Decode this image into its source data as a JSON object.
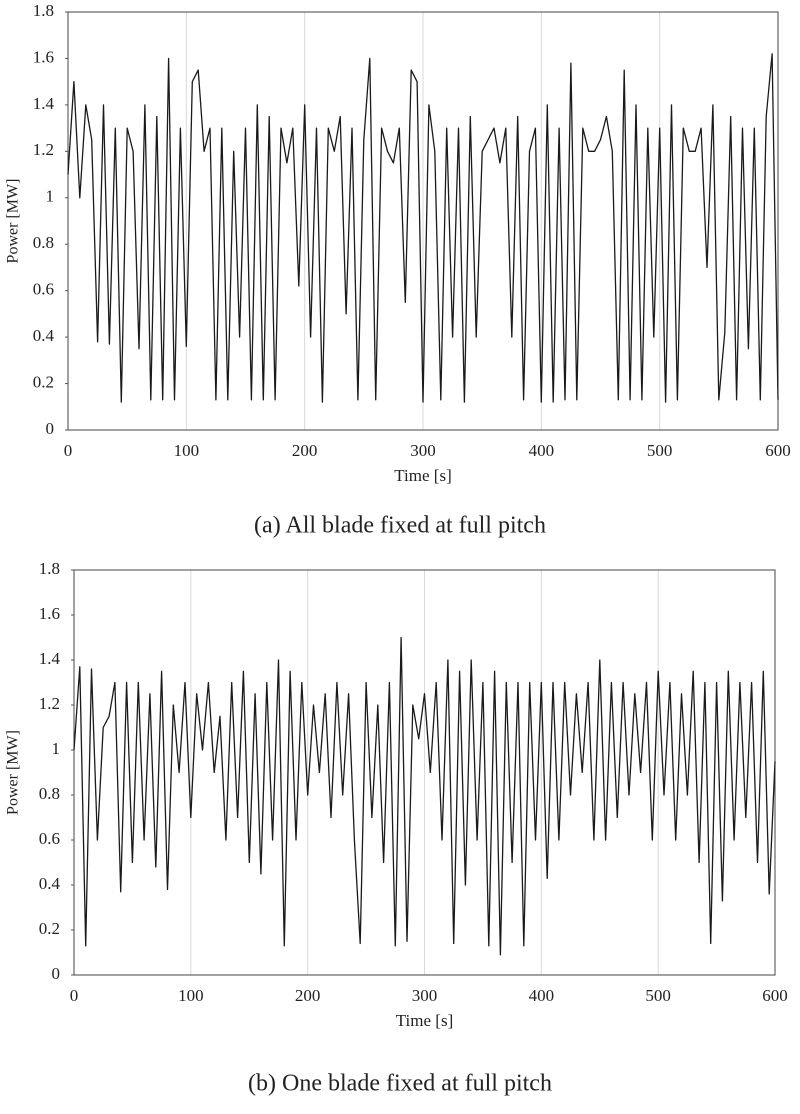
{
  "chart_data": [
    {
      "type": "line",
      "caption": "(a) All blade fixed at full pitch",
      "x_label": "Time [s]",
      "y_label": "Power [MW]",
      "color": "#1a1a1a",
      "grid": "x",
      "xlim": [
        0,
        600
      ],
      "xticks": [
        0,
        100,
        200,
        300,
        400,
        500,
        600
      ],
      "ylim": [
        0,
        1.8
      ],
      "yticks": [
        0,
        0.2,
        0.4,
        0.6,
        0.8,
        1,
        1.2,
        1.4,
        1.6,
        1.8
      ],
      "x": [
        0,
        5,
        10,
        15,
        20,
        25,
        30,
        35,
        40,
        45,
        50,
        55,
        60,
        65,
        70,
        75,
        80,
        85,
        90,
        95,
        100,
        105,
        110,
        115,
        120,
        125,
        130,
        135,
        140,
        145,
        150,
        155,
        160,
        165,
        170,
        175,
        180,
        185,
        190,
        195,
        200,
        205,
        210,
        215,
        220,
        225,
        230,
        235,
        240,
        245,
        250,
        255,
        260,
        265,
        270,
        275,
        280,
        285,
        290,
        295,
        300,
        305,
        310,
        315,
        320,
        325,
        330,
        335,
        340,
        345,
        350,
        355,
        360,
        365,
        370,
        375,
        380,
        385,
        390,
        395,
        400,
        405,
        410,
        415,
        420,
        425,
        430,
        435,
        440,
        445,
        450,
        455,
        460,
        465,
        470,
        475,
        480,
        485,
        490,
        495,
        500,
        505,
        510,
        515,
        520,
        525,
        530,
        535,
        540,
        545,
        550,
        555,
        560,
        565,
        570,
        575,
        580,
        585,
        590,
        595,
        600
      ],
      "values": [
        1.1,
        1.5,
        1.0,
        1.4,
        1.25,
        0.38,
        1.4,
        0.37,
        1.3,
        0.12,
        1.3,
        1.2,
        0.35,
        1.4,
        0.13,
        1.35,
        0.13,
        1.6,
        0.13,
        1.3,
        0.36,
        1.5,
        1.55,
        1.2,
        1.3,
        0.13,
        1.3,
        0.13,
        1.2,
        0.4,
        1.3,
        0.13,
        1.4,
        0.13,
        1.35,
        0.13,
        1.3,
        1.15,
        1.3,
        0.62,
        1.4,
        0.4,
        1.3,
        0.12,
        1.3,
        1.2,
        1.35,
        0.5,
        1.3,
        0.13,
        1.25,
        1.6,
        0.13,
        1.3,
        1.2,
        1.15,
        1.3,
        0.55,
        1.55,
        1.5,
        0.12,
        1.4,
        1.2,
        0.13,
        1.3,
        0.4,
        1.3,
        0.12,
        1.35,
        0.4,
        1.2,
        1.25,
        1.3,
        1.15,
        1.3,
        0.4,
        1.35,
        0.13,
        1.2,
        1.3,
        0.12,
        1.4,
        0.12,
        1.3,
        0.13,
        1.58,
        0.13,
        1.3,
        1.2,
        1.2,
        1.25,
        1.35,
        1.2,
        0.13,
        1.55,
        0.13,
        1.4,
        0.13,
        1.3,
        0.4,
        1.3,
        0.12,
        1.4,
        0.13,
        1.3,
        1.2,
        1.2,
        1.3,
        0.7,
        1.4,
        0.13,
        0.42,
        1.35,
        0.13,
        1.3,
        0.35,
        1.3,
        0.13,
        1.35,
        1.62,
        0.13
      ]
    },
    {
      "type": "line",
      "caption": "(b) One blade fixed at full pitch",
      "x_label": "Time [s]",
      "y_label": "Power [MW]",
      "color": "#1a1a1a",
      "grid": "x",
      "xlim": [
        0,
        600
      ],
      "xticks": [
        0,
        100,
        200,
        300,
        400,
        500,
        600
      ],
      "ylim": [
        0,
        1.8
      ],
      "yticks": [
        0,
        0.2,
        0.4,
        0.6,
        0.8,
        1,
        1.2,
        1.4,
        1.6,
        1.8
      ],
      "x": [
        0,
        5,
        10,
        15,
        20,
        25,
        30,
        35,
        40,
        45,
        50,
        55,
        60,
        65,
        70,
        75,
        80,
        85,
        90,
        95,
        100,
        105,
        110,
        115,
        120,
        125,
        130,
        135,
        140,
        145,
        150,
        155,
        160,
        165,
        170,
        175,
        180,
        185,
        190,
        195,
        200,
        205,
        210,
        215,
        220,
        225,
        230,
        235,
        240,
        245,
        250,
        255,
        260,
        265,
        270,
        275,
        280,
        285,
        290,
        295,
        300,
        305,
        310,
        315,
        320,
        325,
        330,
        335,
        340,
        345,
        350,
        355,
        360,
        365,
        370,
        375,
        380,
        385,
        390,
        395,
        400,
        405,
        410,
        415,
        420,
        425,
        430,
        435,
        440,
        445,
        450,
        455,
        460,
        465,
        470,
        475,
        480,
        485,
        490,
        495,
        500,
        505,
        510,
        515,
        520,
        525,
        530,
        535,
        540,
        545,
        550,
        555,
        560,
        565,
        570,
        575,
        580,
        585,
        590,
        595,
        600
      ],
      "values": [
        1.0,
        1.37,
        0.13,
        1.36,
        0.6,
        1.1,
        1.15,
        1.3,
        0.37,
        1.3,
        0.5,
        1.3,
        0.6,
        1.25,
        0.48,
        1.35,
        0.38,
        1.2,
        0.9,
        1.3,
        0.7,
        1.25,
        1.0,
        1.3,
        0.9,
        1.15,
        0.6,
        1.3,
        0.7,
        1.35,
        0.5,
        1.25,
        0.45,
        1.3,
        0.6,
        1.4,
        0.13,
        1.35,
        0.6,
        1.3,
        0.8,
        1.2,
        0.9,
        1.25,
        0.7,
        1.3,
        0.8,
        1.25,
        0.6,
        0.14,
        1.3,
        0.7,
        1.2,
        0.5,
        1.3,
        0.13,
        1.5,
        0.15,
        1.2,
        1.05,
        1.25,
        0.9,
        1.3,
        0.6,
        1.4,
        0.14,
        1.35,
        0.4,
        1.4,
        0.6,
        1.3,
        0.13,
        1.35,
        0.09,
        1.3,
        0.5,
        1.3,
        0.13,
        1.3,
        0.6,
        1.3,
        0.43,
        1.3,
        0.6,
        1.3,
        0.8,
        1.25,
        0.9,
        1.3,
        0.6,
        1.4,
        0.6,
        1.3,
        0.7,
        1.3,
        0.8,
        1.25,
        0.9,
        1.3,
        0.6,
        1.35,
        0.8,
        1.3,
        0.6,
        1.25,
        0.8,
        1.35,
        0.5,
        1.3,
        0.14,
        1.3,
        0.33,
        1.35,
        0.6,
        1.3,
        0.7,
        1.3,
        0.5,
        1.35,
        0.36,
        0.95
      ]
    }
  ]
}
